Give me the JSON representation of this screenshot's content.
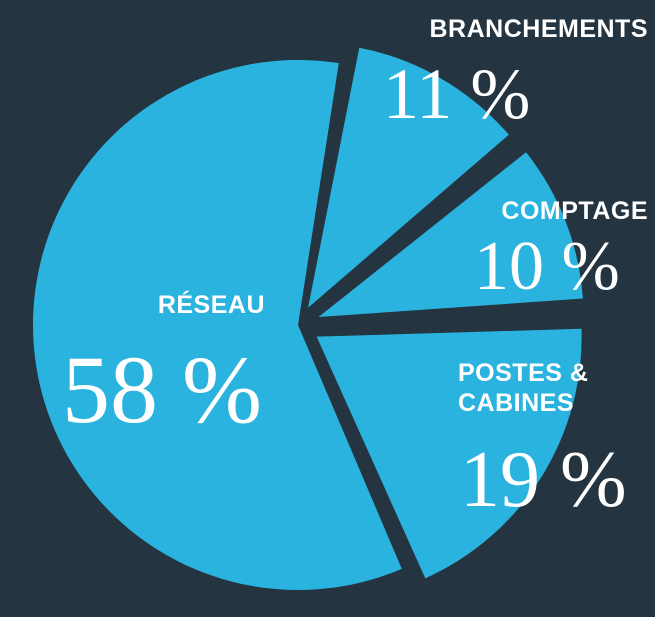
{
  "chart_data": {
    "type": "pie",
    "categories": [
      "BRANCHEMENTS",
      "COMPTAGE",
      "POSTES & CABINES",
      "RÉSEAU"
    ],
    "values": [
      11,
      10,
      19,
      58
    ],
    "value_labels": [
      "11 %",
      "10 %",
      "19 %",
      "58 %"
    ],
    "color": "#2bb3df"
  }
}
